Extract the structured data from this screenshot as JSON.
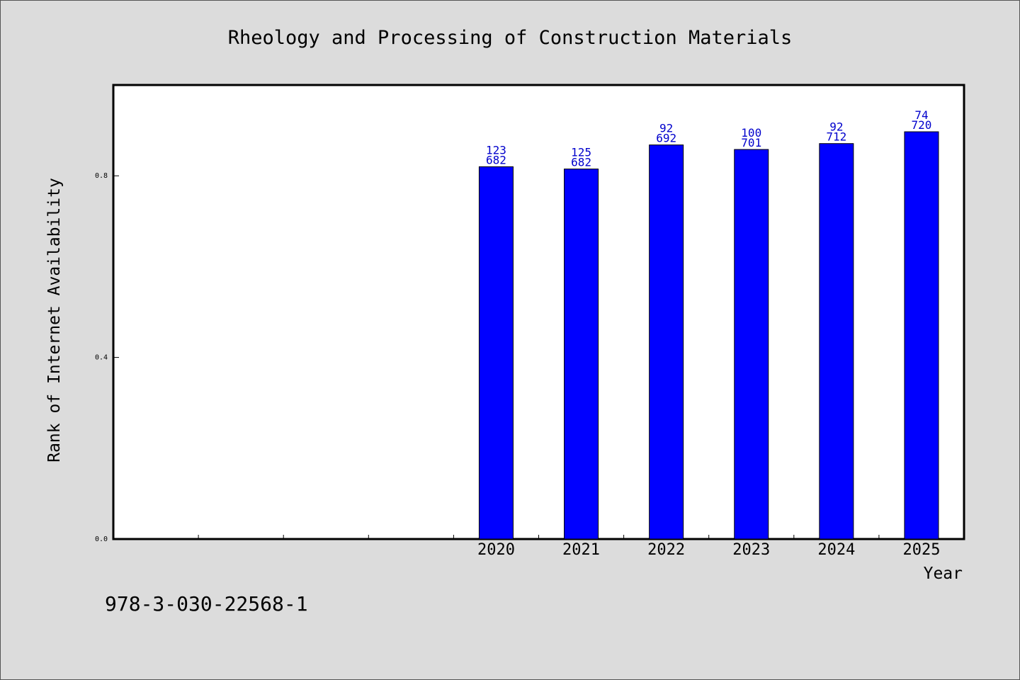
{
  "chart_data": {
    "type": "bar",
    "title": "Rheology and Processing of Construction Materials",
    "xlabel": "Year",
    "ylabel": "Rank of Internet Availability",
    "categories": [
      "",
      "",
      "",
      "",
      "2020",
      "2021",
      "2022",
      "2023",
      "2024",
      "2025"
    ],
    "values": [
      null,
      null,
      null,
      null,
      0.82,
      0.815,
      0.868,
      0.858,
      0.871,
      0.897
    ],
    "labels_top": [
      "",
      "",
      "",
      "",
      "123",
      "125",
      "92",
      "100",
      "92",
      "74"
    ],
    "labels_bottom": [
      "",
      "",
      "",
      "",
      "682",
      "682",
      "692",
      "701",
      "712",
      "720"
    ],
    "y_ticks": [
      "0.0",
      "0.4",
      "0.8"
    ],
    "y_tick_values": [
      0.0,
      0.4,
      0.8
    ],
    "ylim": [
      0,
      1.0
    ],
    "grid": false,
    "bar_color": "#0000ff",
    "label_color": "#0000cc"
  },
  "footer": {
    "isbn": "978-3-030-22568-1"
  },
  "colors": {
    "background": "#dcdcdc",
    "plot_background": "#ffffff"
  }
}
